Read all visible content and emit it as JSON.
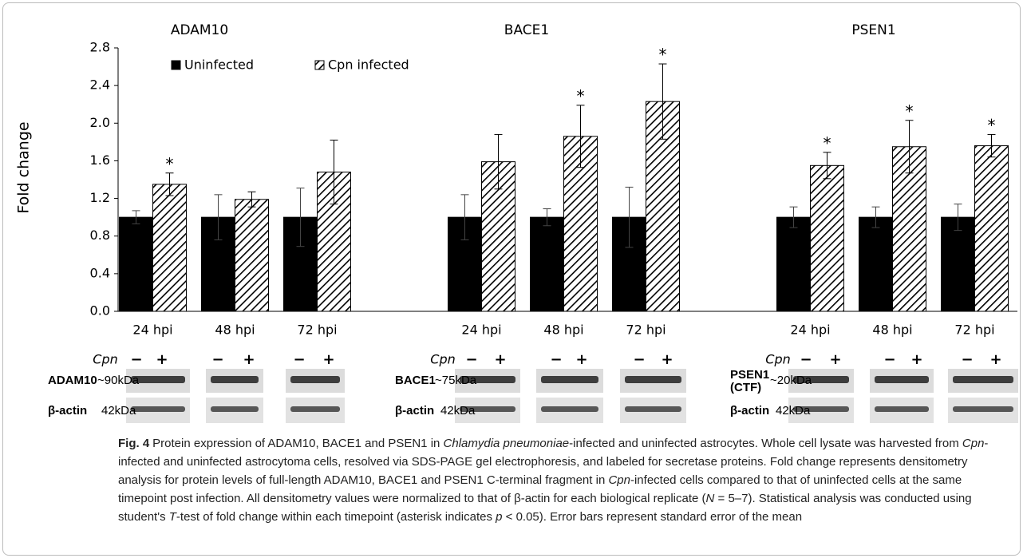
{
  "chart_data": {
    "type": "bar",
    "ylabel": "Fold change",
    "group_titles": [
      "ADAM10",
      "BACE1",
      "PSEN1"
    ],
    "categories": [
      "24 hpi",
      "48 hpi",
      "72 hpi",
      null,
      "24 hpi",
      "48 hpi",
      "72 hpi",
      null,
      "24 hpi",
      "48 hpi",
      "72 hpi"
    ],
    "series": [
      {
        "name": "Uninfected",
        "color": "#000000",
        "hatch": false,
        "values": [
          1.0,
          1.0,
          1.0,
          null,
          1.0,
          1.0,
          1.0,
          null,
          1.0,
          1.0,
          1.0
        ],
        "errors": [
          0.07,
          0.24,
          0.31,
          null,
          0.24,
          0.09,
          0.32,
          null,
          0.11,
          0.11,
          0.14
        ]
      },
      {
        "name": "Cpn infected",
        "color": "#000000",
        "hatch": true,
        "values": [
          1.35,
          1.19,
          1.48,
          null,
          1.59,
          1.86,
          2.23,
          null,
          1.55,
          1.75,
          1.76
        ],
        "errors": [
          0.12,
          0.08,
          0.34,
          null,
          0.29,
          0.33,
          0.4,
          null,
          0.14,
          0.28,
          0.12
        ],
        "significance": [
          "*",
          null,
          null,
          null,
          null,
          "*",
          "*",
          null,
          "*",
          "*",
          "*"
        ]
      }
    ],
    "ylim": [
      0,
      2.8
    ],
    "yticks": [
      {
        "value": 0,
        "label": "0.0"
      },
      0.4,
      0.8,
      1.2,
      1.6,
      {
        "value": 2,
        "label": "2.0"
      },
      2.4,
      2.8
    ],
    "grid": false
  },
  "blots": {
    "panels": [
      {
        "cpn": "Cpn",
        "signs": [
          "−",
          "+",
          "−",
          "+",
          "−",
          "+"
        ],
        "protein": [
          "ADAM10"
        ],
        "size": "~90kDa",
        "control": "β-actin",
        "control_size": "42kDa"
      },
      {
        "cpn": "Cpn",
        "signs": [
          "−",
          "+",
          "−",
          "+",
          "−",
          "+"
        ],
        "protein": [
          "BACE1"
        ],
        "size": "~75kDa",
        "control": "β-actin",
        "control_size": "42kDa"
      },
      {
        "cpn": "Cpn",
        "signs": [
          "−",
          "+",
          "−",
          "+",
          "−",
          "+"
        ],
        "protein": [
          "PSEN1",
          "(CTF)"
        ],
        "size": "~20kDa",
        "control": "β-actin",
        "control_size": "42kDa"
      }
    ]
  },
  "caption": {
    "label": "Fig. 4",
    "parts": [
      {
        "text": "Protein expression of ADAM10, BACE1 and PSEN1 in "
      },
      {
        "text": "Chlamydia pneumoniae",
        "italic": true
      },
      {
        "text": "-infected and uninfected astrocytes. Whole cell lysate was harvested from "
      },
      {
        "text": "Cpn",
        "italic": true
      },
      {
        "text": "-infected and uninfected astrocytoma cells, resolved via SDS-PAGE gel electrophoresis, and labeled for secretase proteins. Fold change represents densitometry analysis for protein levels of full-length ADAM10, BACE1 and PSEN1 C-terminal fragment in "
      },
      {
        "text": "Cpn",
        "italic": true
      },
      {
        "text": "-infected cells compared to that of uninfected cells at the same timepoint post infection. All densitometry values were normalized to that of β-actin for each biological replicate ("
      },
      {
        "text": "N",
        "italic": true
      },
      {
        "text": " = 5–7). Statistical analysis was conducted using student's "
      },
      {
        "text": "T",
        "italic": true
      },
      {
        "text": "-test of fold change within each timepoint (asterisk indicates "
      },
      {
        "text": "p",
        "italic": true
      },
      {
        "text": " < 0.05). Error bars represent standard error of the mean"
      }
    ]
  }
}
